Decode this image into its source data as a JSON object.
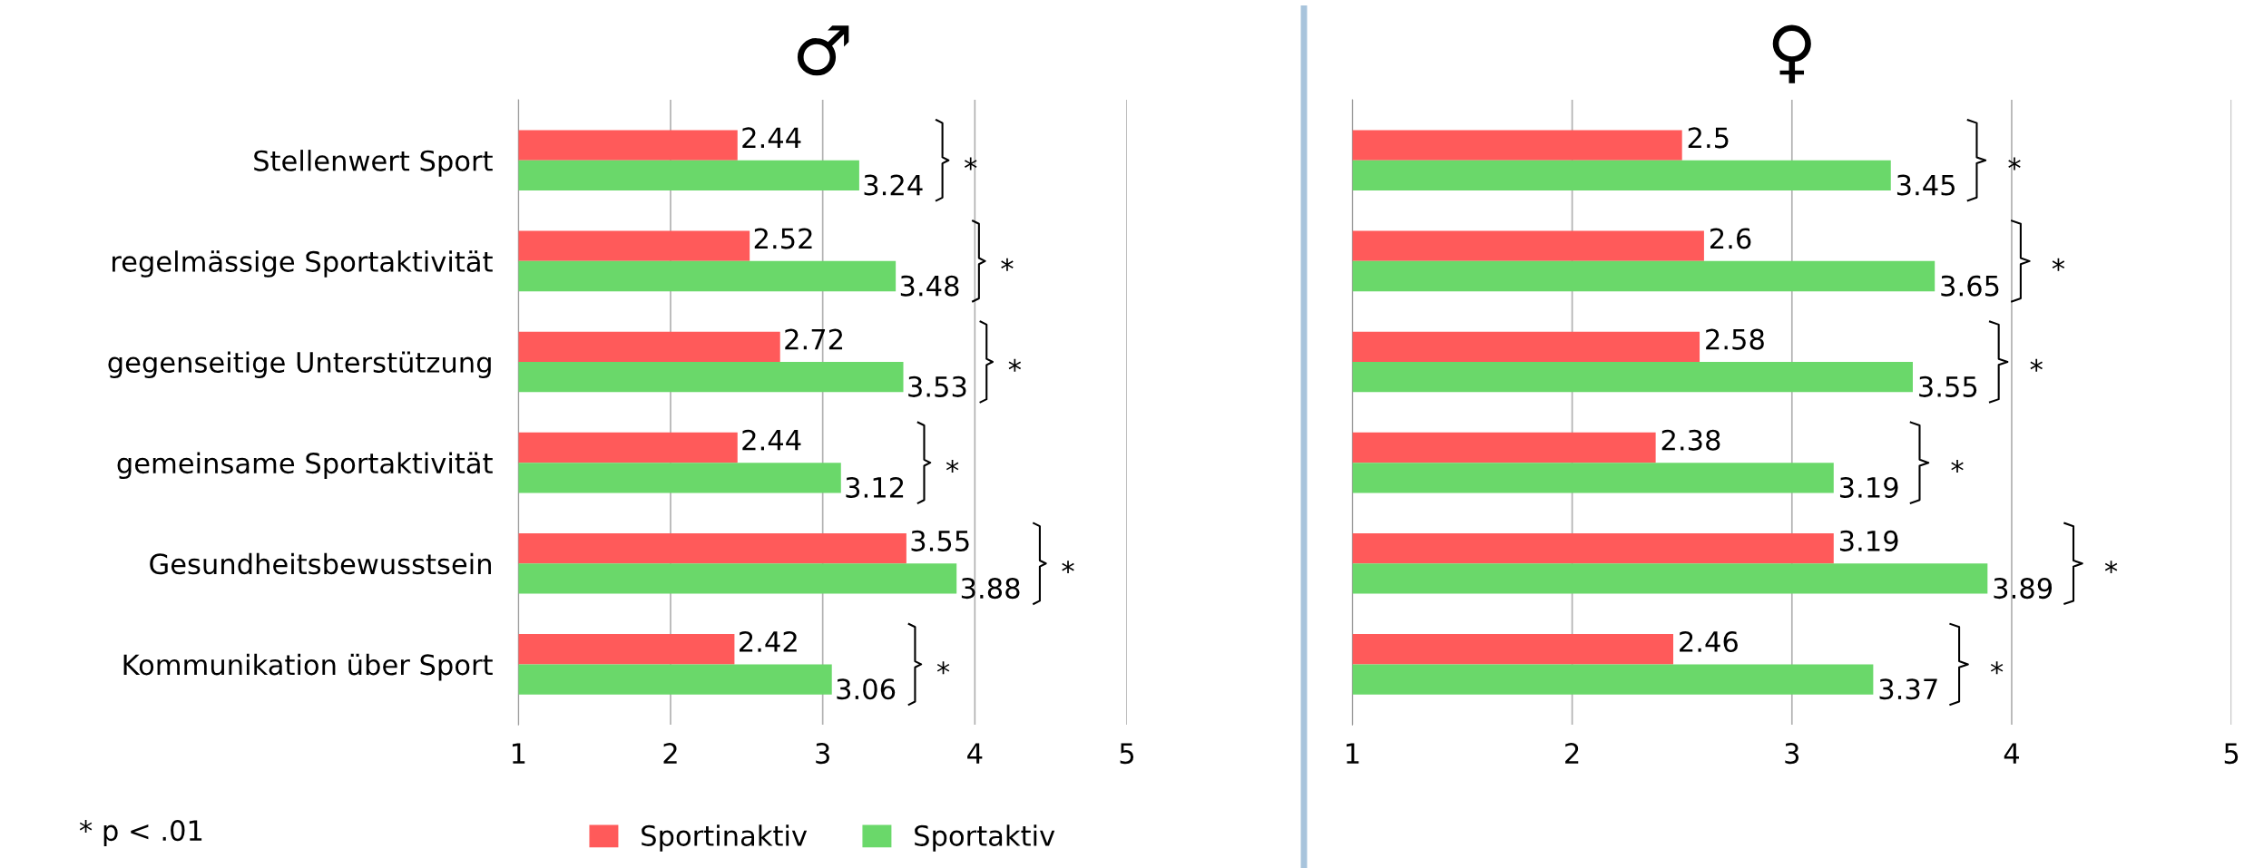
{
  "chart_data": [
    {
      "type": "bar",
      "title": "♂",
      "orientation": "horizontal",
      "categories": [
        "Stellenwert Sport",
        "regelmässige Sportaktivität",
        "gegenseitige Unterstützung",
        "gemeinsame Sportaktivität",
        "Gesundheitsbewusstsein",
        "Kommunikation über Sport"
      ],
      "series": [
        {
          "name": "Sportinaktiv",
          "color": "#ff5a5a",
          "values": [
            2.44,
            2.52,
            2.72,
            2.44,
            3.55,
            2.42
          ]
        },
        {
          "name": "Sportaktiv",
          "color": "#6ad86a",
          "values": [
            3.24,
            3.48,
            3.53,
            3.12,
            3.88,
            3.06
          ]
        }
      ],
      "xlim": [
        1,
        5
      ],
      "xticks": [
        1,
        2,
        3,
        4,
        5
      ],
      "grid": "x",
      "data_labels": true,
      "legend": "bottom",
      "annotations": [
        "*",
        "*",
        "*",
        "*",
        "*",
        "*",
        "* p < .01"
      ]
    },
    {
      "type": "bar",
      "title": "♀",
      "orientation": "horizontal",
      "categories": [
        null,
        null,
        null,
        null,
        null,
        null
      ],
      "series": [
        {
          "color": "#ff5a5a",
          "values": [
            2.5,
            2.6,
            2.58,
            2.38,
            3.19,
            2.46
          ]
        },
        {
          "color": "#6ad86a",
          "values": [
            3.45,
            3.65,
            3.55,
            3.19,
            3.89,
            3.37
          ]
        }
      ],
      "xlim": [
        1,
        5
      ],
      "xticks": [
        1,
        2,
        3,
        4,
        5
      ],
      "grid": "x",
      "data_labels": true,
      "annotations": [
        "*",
        "*",
        "*",
        "*",
        "*",
        "*"
      ]
    }
  ]
}
